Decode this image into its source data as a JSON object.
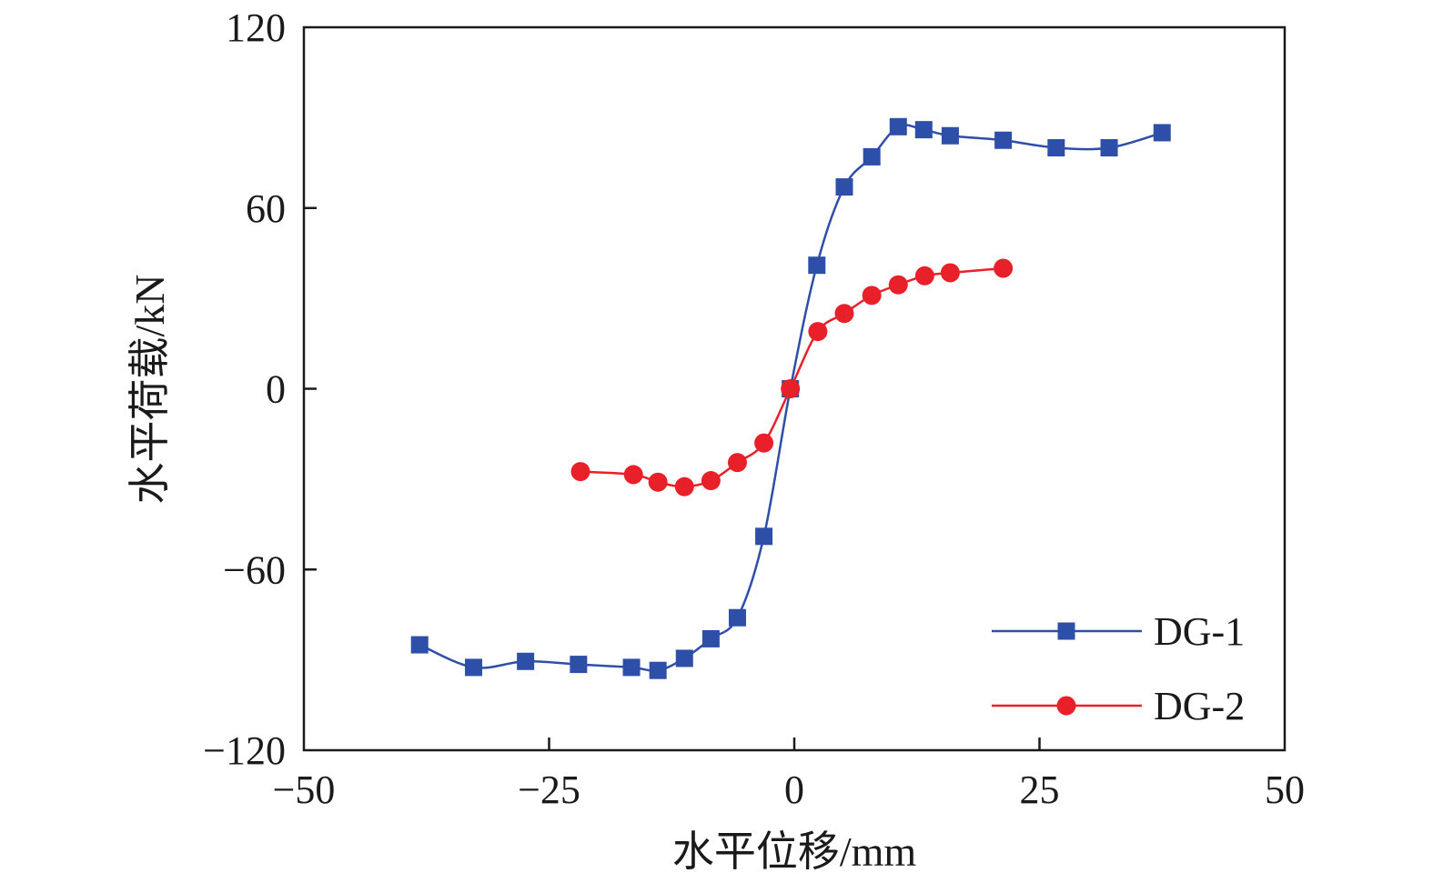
{
  "chart_data": {
    "type": "line",
    "title": "",
    "xlabel": "水平位移/mm",
    "ylabel": "水平荷载/kN",
    "xlim": [
      -50,
      50
    ],
    "ylim": [
      -120,
      120
    ],
    "x_ticks": [
      -50,
      -25,
      0,
      25,
      50
    ],
    "y_ticks": [
      -120,
      -60,
      0,
      60,
      120
    ],
    "x_tick_labels": [
      "−50",
      "−25",
      "0",
      "25",
      "50"
    ],
    "y_tick_labels": [
      "−120",
      "−60",
      "0",
      "60",
      "120"
    ],
    "grid": false,
    "legend_position": "bottom-right",
    "series": [
      {
        "name": "DG-1",
        "color": "#2e4fa8",
        "marker": "square",
        "x": [
          -38.2,
          -32.7,
          -27.4,
          -22,
          -16.6,
          -13.9,
          -11.2,
          -8.5,
          -5.8,
          -3.1,
          -0.4,
          2.3,
          5.1,
          7.9,
          10.6,
          13.2,
          15.9,
          21.3,
          26.7,
          32.1,
          37.5
        ],
        "y": [
          -85,
          -92.5,
          -90.5,
          -91.5,
          -92.5,
          -93.5,
          -89.5,
          -83,
          -76,
          -49,
          0,
          41,
          67,
          77,
          87,
          86,
          84,
          82.5,
          80,
          80,
          85
        ]
      },
      {
        "name": "DG-2",
        "color": "#e8202a",
        "marker": "circle",
        "x": [
          -21.8,
          -16.4,
          -13.9,
          -11.2,
          -8.5,
          -5.8,
          -3.1,
          -0.4,
          2.4,
          5.1,
          7.9,
          10.6,
          13.3,
          15.9,
          21.3
        ],
        "y": [
          -27.5,
          -28.5,
          -31,
          -32.5,
          -30.5,
          -24.5,
          -18,
          0,
          19,
          25,
          31,
          34.5,
          37.5,
          38.5,
          40
        ]
      }
    ]
  }
}
